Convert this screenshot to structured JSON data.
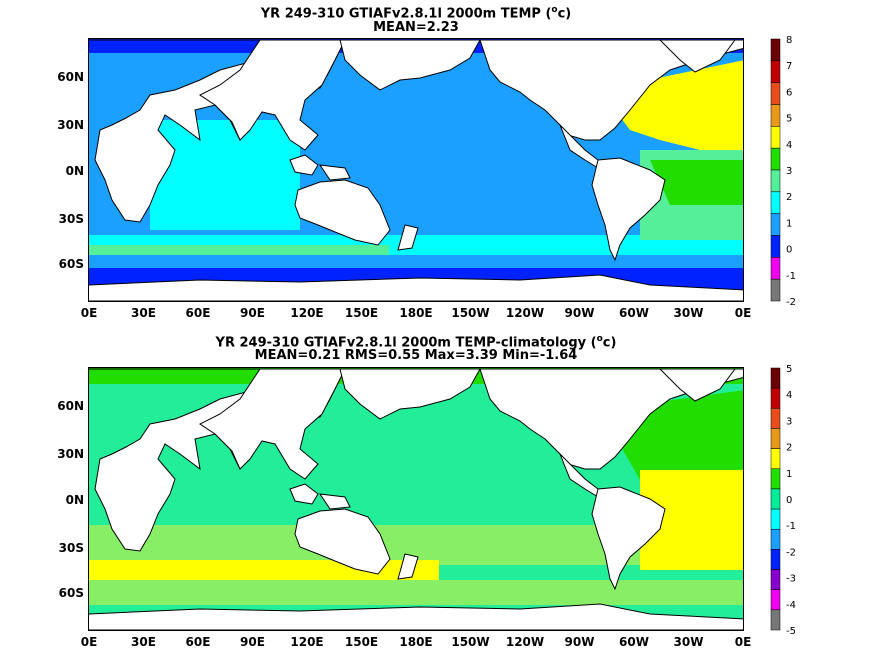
{
  "panels": [
    {
      "title_prefix": "YR 249-310 GTIAFv2.8.1l 2000m TEMP (",
      "title_sup": "o",
      "title_suffix": "c)",
      "subtitle": "MEAN=2.23",
      "lat_labels": [
        "60N",
        "30N",
        "0N",
        "30S",
        "60S"
      ],
      "lon_labels": [
        "0E",
        "30E",
        "60E",
        "90E",
        "120E",
        "150E",
        "180E",
        "150W",
        "120W",
        "90W",
        "60W",
        "30W",
        "0E"
      ],
      "colorbar": {
        "labels": [
          "8",
          "7",
          "6",
          "5",
          "4",
          "3",
          "2",
          "1",
          "0",
          "-1",
          "-2"
        ],
        "colors": [
          "#6b0000",
          "#c00000",
          "#e84e1b",
          "#e8981b",
          "#ffff00",
          "#22dd00",
          "#55ee99",
          "#00ffff",
          "#1ca0ff",
          "#0022ff",
          "#ee00ee",
          "#777777"
        ]
      }
    },
    {
      "title_prefix": "YR 249-310 GTIAFv2.8.1l 2000m TEMP-climatology (",
      "title_sup": "o",
      "title_suffix": "c)",
      "subtitle": "MEAN=0.21   RMS=0.55   Max=3.39   Min=-1.64",
      "lat_labels": [
        "60N",
        "30N",
        "0N",
        "30S",
        "60S"
      ],
      "lon_labels": [
        "0E",
        "30E",
        "60E",
        "90E",
        "120E",
        "150E",
        "180E",
        "150W",
        "120W",
        "90W",
        "60W",
        "30W",
        "0E"
      ],
      "colorbar": {
        "labels": [
          "5",
          "4",
          "3",
          "2",
          "1",
          "0",
          "-1",
          "-2",
          "-3",
          "-4",
          "-5"
        ],
        "colors": [
          "#6b0000",
          "#c00000",
          "#e84e1b",
          "#e8981b",
          "#ffff00",
          "#22dd00",
          "#00ee99",
          "#00ffff",
          "#1ca0ff",
          "#0022ff",
          "#8800cc",
          "#ee00ee",
          "#777777"
        ]
      }
    }
  ]
}
